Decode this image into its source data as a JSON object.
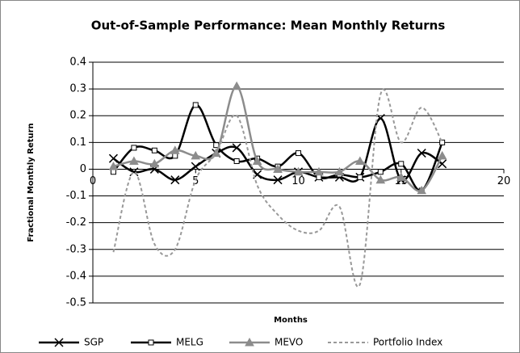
{
  "chart_data": {
    "type": "line",
    "title": "Out-of-Sample Performance: Mean Monthly Returns",
    "x_label": "Months",
    "y_label": "Fractional Monthly Return",
    "x": [
      1,
      2,
      3,
      4,
      5,
      6,
      7,
      8,
      9,
      10,
      11,
      12,
      13,
      14,
      15,
      16,
      17
    ],
    "series": [
      {
        "name": "SGP",
        "color": "#000000",
        "marker": "x",
        "dashed": false,
        "values": [
          0.04,
          -0.01,
          0.0,
          -0.04,
          0.01,
          0.06,
          0.08,
          -0.02,
          -0.04,
          -0.01,
          -0.03,
          -0.03,
          -0.03,
          0.19,
          -0.04,
          0.06,
          0.02
        ]
      },
      {
        "name": "MELG",
        "color": "#000000",
        "marker": "square",
        "dashed": false,
        "values": [
          -0.01,
          0.08,
          0.07,
          0.05,
          0.24,
          0.09,
          0.03,
          0.04,
          0.01,
          0.06,
          -0.03,
          -0.02,
          -0.03,
          -0.01,
          0.02,
          -0.08,
          0.1
        ]
      },
      {
        "name": "MEVO",
        "color": "#8c8c8c",
        "marker": "triangle",
        "dashed": false,
        "values": [
          0.01,
          0.03,
          0.02,
          0.07,
          0.05,
          0.06,
          0.31,
          0.03,
          0.0,
          -0.01,
          -0.01,
          -0.01,
          0.03,
          -0.04,
          -0.03,
          -0.08,
          0.05
        ]
      },
      {
        "name": "Portfolio Index",
        "color": "#999999",
        "marker": "none",
        "dashed": true,
        "values": [
          -0.31,
          -0.01,
          -0.28,
          -0.3,
          -0.04,
          0.06,
          0.2,
          -0.06,
          -0.17,
          -0.23,
          -0.23,
          -0.14,
          -0.43,
          0.28,
          0.1,
          0.23,
          0.1
        ]
      }
    ],
    "xlim": [
      0,
      20
    ],
    "xticks": [
      0,
      5,
      10,
      15,
      20
    ],
    "ylim": [
      -0.5,
      0.4
    ],
    "yticks": [
      -0.5,
      -0.4,
      -0.3,
      -0.2,
      -0.1,
      0,
      0.1,
      0.2,
      0.3,
      0.4
    ],
    "grid": true,
    "smooth": true,
    "legend": "bottom"
  }
}
